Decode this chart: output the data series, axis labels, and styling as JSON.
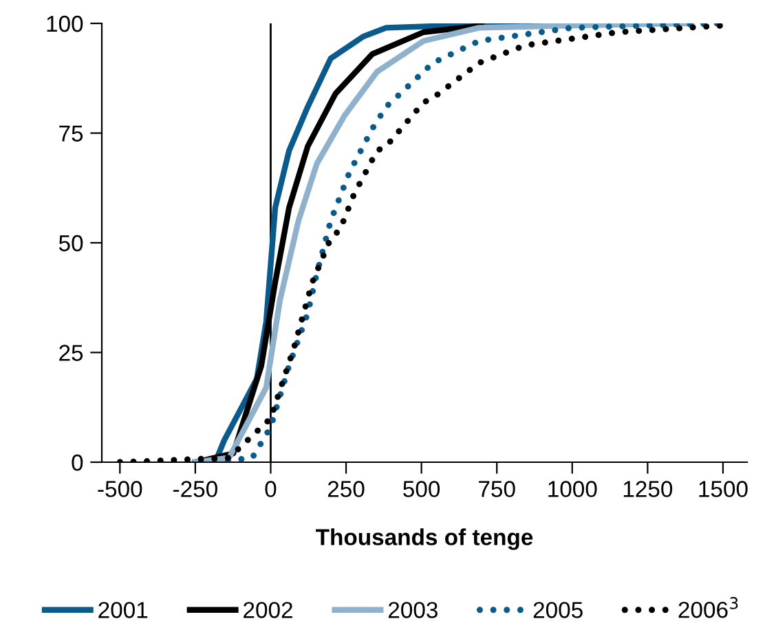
{
  "chart_data": {
    "type": "line",
    "xlabel": "Thousands of tenge",
    "xlim": [
      -560,
      1580
    ],
    "ylim": [
      0,
      100
    ],
    "xticks": [
      -500,
      -250,
      0,
      250,
      500,
      750,
      1000,
      1250,
      1500
    ],
    "yticks": [
      0,
      25,
      50,
      75,
      100
    ],
    "grid": false,
    "legend": "bottom",
    "marker": "none",
    "ref_lines": [
      {
        "axis": "x",
        "value": 0,
        "color": "#000000"
      }
    ],
    "series": [
      {
        "name": "2001",
        "color": "#0a5a8c",
        "line_style": "solid",
        "x": [
          -250,
          -184,
          -154,
          -46,
          -15,
          15,
          61,
          123,
          199,
          307,
          383,
          600,
          800,
          1037
        ],
        "values": [
          0,
          0,
          5,
          19,
          32,
          58,
          71,
          81,
          92,
          97,
          99,
          99.5,
          100,
          100
        ]
      },
      {
        "name": "2002",
        "color": "#000000",
        "line_style": "solid",
        "x": [
          -250,
          -124,
          -31,
          15,
          61,
          123,
          215,
          337,
          507,
          700
        ],
        "values": [
          0,
          2,
          22,
          41,
          58,
          72,
          84,
          93,
          98,
          99.5
        ]
      },
      {
        "name": "2003",
        "color": "#8fb1cc",
        "line_style": "solid",
        "x": [
          -250,
          -138,
          -15,
          31,
          92,
          153,
          245,
          353,
          507,
          691,
          1000,
          1396
        ],
        "values": [
          0,
          1,
          17,
          37,
          55,
          68,
          79,
          89,
          96,
          99,
          99.5,
          100
        ]
      },
      {
        "name": "2005",
        "color": "#0a5a8c",
        "line_style": "dotted",
        "x": [
          -500,
          -184,
          -61,
          0,
          61,
          123,
          153,
          199,
          261,
          337,
          383,
          430,
          538,
          691,
          998,
          1490
        ],
        "values": [
          0,
          0,
          1,
          8,
          22,
          34,
          43,
          55,
          66,
          76,
          81,
          84,
          91,
          96,
          99,
          100
        ]
      },
      {
        "name": "2006$^{3}$",
        "color": "#000000",
        "line_style": "dotted",
        "x": [
          -500,
          -138,
          0,
          77,
          138,
          199,
          230,
          276,
          353,
          383,
          507,
          538,
          691,
          844,
          1152,
          1498
        ],
        "values": [
          0,
          1,
          10,
          26,
          41,
          51,
          53,
          61,
          71,
          72,
          82,
          83,
          91,
          95,
          98,
          99.5
        ]
      }
    ]
  }
}
